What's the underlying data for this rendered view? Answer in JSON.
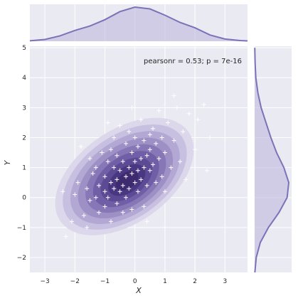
{
  "chart_data": {
    "type": "scatter",
    "subtype": "jointplot-kde",
    "title": "",
    "xlabel": "X",
    "ylabel": "Y",
    "annotation": "pearsonr = 0.53; p = 7e-16",
    "xlim": [
      -3.5,
      3.75
    ],
    "ylim": [
      -2.5,
      5.05
    ],
    "xticks": [
      -3,
      -2,
      -1,
      0,
      1,
      2,
      3
    ],
    "yticks": [
      -2,
      -1,
      0,
      1,
      2,
      3,
      4,
      5
    ],
    "grid": true,
    "marker": "+",
    "colors": {
      "background": "#eaeaf2",
      "grid": "#ffffff",
      "kde_line": "#7b72b8",
      "kde_fill": "#beb8dc",
      "contour_levels": [
        "#dcd7ea",
        "#c8c0e0",
        "#b3a8d3",
        "#9d90c5",
        "#8777b6",
        "#705fa6",
        "#5c4a94",
        "#4a3782",
        "#3d2a6f"
      ],
      "points": "#ffffff"
    },
    "kde_x": {
      "x": [
        -3.5,
        -3.0,
        -2.5,
        -2.0,
        -1.5,
        -1.0,
        -0.5,
        0.0,
        0.5,
        1.0,
        1.5,
        2.0,
        2.5,
        3.0,
        3.5,
        3.75
      ],
      "density": [
        0.005,
        0.02,
        0.06,
        0.12,
        0.17,
        0.24,
        0.33,
        0.38,
        0.36,
        0.29,
        0.21,
        0.15,
        0.07,
        0.025,
        0.008,
        0.004
      ]
    },
    "kde_y": {
      "y": [
        -2.5,
        -2.0,
        -1.5,
        -1.0,
        -0.5,
        0.0,
        0.5,
        1.0,
        1.5,
        2.0,
        2.5,
        3.0,
        3.5,
        4.0,
        4.5,
        5.0
      ],
      "density": [
        0.003,
        0.02,
        0.07,
        0.17,
        0.3,
        0.4,
        0.42,
        0.36,
        0.27,
        0.2,
        0.14,
        0.08,
        0.04,
        0.015,
        0.006,
        0.002
      ]
    },
    "points": [
      [
        -2.3,
        -1.3
      ],
      [
        -2.1,
        -0.8
      ],
      [
        -2.0,
        0.1
      ],
      [
        -1.9,
        0.5
      ],
      [
        -1.7,
        -0.6
      ],
      [
        -1.6,
        0.3
      ],
      [
        -1.5,
        -0.1
      ],
      [
        -1.5,
        1.3
      ],
      [
        -1.4,
        0.8
      ],
      [
        -1.3,
        0.0
      ],
      [
        -1.3,
        1.0
      ],
      [
        -1.2,
        -0.5
      ],
      [
        -1.2,
        0.4
      ],
      [
        -1.1,
        1.5
      ],
      [
        -1.0,
        0.2
      ],
      [
        -1.0,
        0.7
      ],
      [
        -1.0,
        -0.3
      ],
      [
        -0.9,
        1.2
      ],
      [
        -0.9,
        0.0
      ],
      [
        -0.8,
        0.5
      ],
      [
        -0.8,
        1.6
      ],
      [
        -0.8,
        -0.8
      ],
      [
        -0.7,
        0.3
      ],
      [
        -0.7,
        1.0
      ],
      [
        -0.7,
        2.0
      ],
      [
        -0.6,
        0.6
      ],
      [
        -0.6,
        -0.2
      ],
      [
        -0.6,
        1.4
      ],
      [
        -0.5,
        0.2
      ],
      [
        -0.5,
        0.9
      ],
      [
        -0.5,
        2.4
      ],
      [
        -0.4,
        0.4
      ],
      [
        -0.4,
        1.2
      ],
      [
        -0.4,
        -0.5
      ],
      [
        -0.3,
        0.7
      ],
      [
        -0.3,
        1.8
      ],
      [
        -0.3,
        0.0
      ],
      [
        -0.2,
        1.0
      ],
      [
        -0.2,
        0.3
      ],
      [
        -0.2,
        2.2
      ],
      [
        -0.1,
        0.8
      ],
      [
        -0.1,
        1.5
      ],
      [
        -0.1,
        -0.4
      ],
      [
        0.0,
        1.2
      ],
      [
        0.0,
        0.5
      ],
      [
        0.0,
        2.0
      ],
      [
        0.1,
        0.9
      ],
      [
        0.1,
        1.7
      ],
      [
        0.1,
        0.2
      ],
      [
        0.2,
        1.3
      ],
      [
        0.2,
        2.6
      ],
      [
        0.2,
        0.6
      ],
      [
        0.3,
        1.0
      ],
      [
        0.3,
        1.9
      ],
      [
        0.3,
        -0.3
      ],
      [
        0.4,
        1.4
      ],
      [
        0.4,
        0.4
      ],
      [
        0.5,
        2.1
      ],
      [
        0.5,
        0.9
      ],
      [
        0.5,
        1.6
      ],
      [
        0.6,
        1.1
      ],
      [
        0.6,
        2.3
      ],
      [
        0.7,
        0.5
      ],
      [
        0.7,
        1.8
      ],
      [
        0.8,
        1.3
      ],
      [
        0.8,
        2.9
      ],
      [
        0.9,
        0.7
      ],
      [
        0.9,
        2.0
      ],
      [
        1.0,
        1.5
      ],
      [
        1.0,
        0.2
      ],
      [
        1.1,
        2.5
      ],
      [
        1.2,
        1.0
      ],
      [
        1.3,
        1.9
      ],
      [
        1.4,
        3.0
      ],
      [
        1.5,
        1.2
      ],
      [
        1.6,
        2.2
      ],
      [
        1.7,
        0.6
      ],
      [
        1.8,
        2.8
      ],
      [
        2.0,
        1.6
      ],
      [
        2.1,
        2.6
      ],
      [
        2.3,
        3.1
      ],
      [
        2.5,
        2.0
      ],
      [
        -2.4,
        0.2
      ],
      [
        -1.8,
        1.7
      ],
      [
        -0.9,
        2.5
      ],
      [
        0.4,
        -0.8
      ],
      [
        1.3,
        3.4
      ],
      [
        -0.1,
        3.0
      ],
      [
        2.4,
        0.9
      ],
      [
        -1.6,
        -1.0
      ]
    ]
  }
}
